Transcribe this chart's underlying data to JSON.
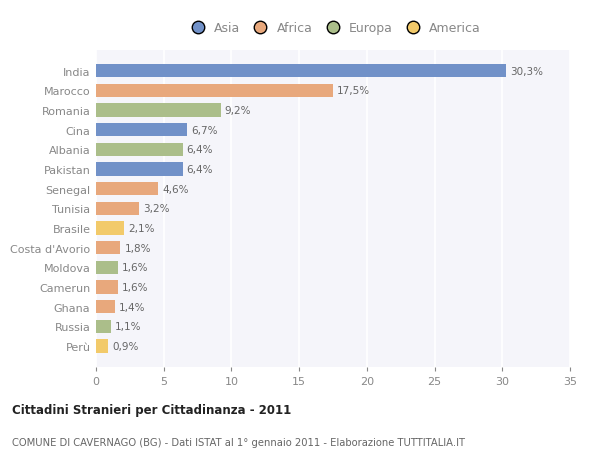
{
  "countries": [
    "India",
    "Marocco",
    "Romania",
    "Cina",
    "Albania",
    "Pakistan",
    "Senegal",
    "Tunisia",
    "Brasile",
    "Costa d'Avorio",
    "Moldova",
    "Camerun",
    "Ghana",
    "Russia",
    "Perù"
  ],
  "values": [
    30.3,
    17.5,
    9.2,
    6.7,
    6.4,
    6.4,
    4.6,
    3.2,
    2.1,
    1.8,
    1.6,
    1.6,
    1.4,
    1.1,
    0.9
  ],
  "labels": [
    "30,3%",
    "17,5%",
    "9,2%",
    "6,7%",
    "6,4%",
    "6,4%",
    "4,6%",
    "3,2%",
    "2,1%",
    "1,8%",
    "1,6%",
    "1,6%",
    "1,4%",
    "1,1%",
    "0,9%"
  ],
  "continents": [
    "Asia",
    "Africa",
    "Europa",
    "Asia",
    "Europa",
    "Asia",
    "Africa",
    "Africa",
    "America",
    "Africa",
    "Europa",
    "Africa",
    "Africa",
    "Europa",
    "America"
  ],
  "colors": {
    "Asia": "#7191C8",
    "Africa": "#E8A87C",
    "Europa": "#ABBE8A",
    "America": "#F2CA6A"
  },
  "background_color": "#ffffff",
  "plot_bg_color": "#f5f5fa",
  "grid_color": "#ffffff",
  "title_bold": "Cittadini Stranieri per Cittadinanza - 2011",
  "subtitle": "COMUNE DI CAVERNAGO (BG) - Dati ISTAT al 1° gennaio 2011 - Elaborazione TUTTITALIA.IT",
  "xlim": [
    0,
    35
  ],
  "xticks": [
    0,
    5,
    10,
    15,
    20,
    25,
    30,
    35
  ],
  "legend_order": [
    "Asia",
    "Africa",
    "Europa",
    "America"
  ],
  "text_color": "#888888",
  "label_color": "#666666",
  "title_color": "#222222",
  "subtitle_color": "#666666"
}
